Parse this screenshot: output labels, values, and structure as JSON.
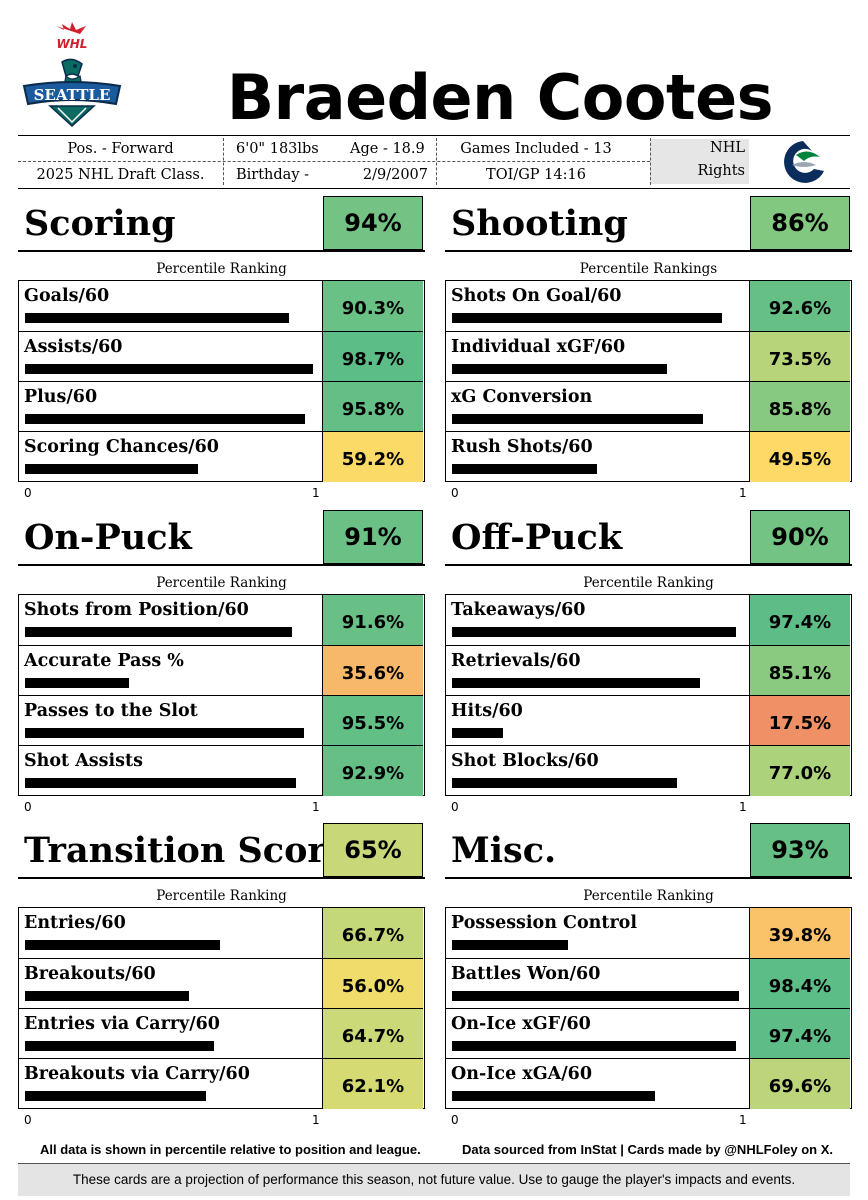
{
  "header": {
    "league_logo_text": "WHL",
    "team_logo_text": "SEATTLE",
    "player_name": "Braeden Cootes",
    "position": "Pos. - Forward",
    "draft_class": "2025 NHL Draft Class.",
    "height_weight": "6'0\" 183lbs",
    "age": "Age - 18.9",
    "birthday_label": "Birthday -",
    "birthday_value": "2/9/2007",
    "games_included": "Games Included - 13",
    "toi_gp": "TOI/GP 14:16",
    "rights_line1": "NHL",
    "rights_line2": "Rights",
    "rights_team_icon": "canucks-orca-logo"
  },
  "colors": {
    "green_dark": "#5cbd86",
    "green": "#74c385",
    "green_yellow": "#b7d47b",
    "yellow_green": "#c8d879",
    "yellow": "#fed967",
    "orange": "#f8b86a",
    "red_orange": "#ef9066"
  },
  "chart_data": [
    {
      "type": "bar",
      "title": "Scoring",
      "score": "94%",
      "score_color": "#74c385",
      "subtitle": "Percentile Ranking",
      "xlim": [
        0,
        1
      ],
      "tick_labels": [
        "0",
        "1"
      ],
      "categories": [
        "Goals/60",
        "Assists/60",
        "Plus/60",
        "Scoring Chances/60"
      ],
      "values": [
        0.903,
        0.987,
        0.958,
        0.592
      ],
      "value_labels": [
        "90.3%",
        "98.7%",
        "95.8%",
        "59.2%"
      ],
      "value_colors": [
        "#6ac185",
        "#5cbd86",
        "#64bf86",
        "#fcda67"
      ]
    },
    {
      "type": "bar",
      "title": "Shooting",
      "score": "86%",
      "score_color": "#83c880",
      "subtitle": "Percentile Rankings",
      "xlim": [
        0,
        1
      ],
      "tick_labels": [
        "0",
        "1"
      ],
      "categories": [
        "Shots On Goal/60",
        "Individual xGF/60",
        "xG Conversion",
        "Rush Shots/60"
      ],
      "values": [
        0.926,
        0.735,
        0.858,
        0.495
      ],
      "value_labels": [
        "92.6%",
        "73.5%",
        "85.8%",
        "49.5%"
      ],
      "value_colors": [
        "#66c086",
        "#b7d47b",
        "#87c981",
        "#fed967"
      ]
    },
    {
      "type": "bar",
      "title": "On-Puck",
      "score": "91%",
      "score_color": "#6bc185",
      "subtitle": "Percentile Ranking",
      "xlim": [
        0,
        1
      ],
      "tick_labels": [
        "0",
        "1"
      ],
      "categories": [
        "Shots from Position/60",
        "Accurate Pass %",
        "Passes to the Slot",
        "Shot Assists"
      ],
      "values": [
        0.916,
        0.356,
        0.955,
        0.929
      ],
      "value_labels": [
        "91.6%",
        "35.6%",
        "95.5%",
        "92.9%"
      ],
      "value_colors": [
        "#68c086",
        "#f8b86a",
        "#62bf86",
        "#66c086"
      ]
    },
    {
      "type": "bar",
      "title": "Off-Puck",
      "score": "90%",
      "score_color": "#72c384",
      "subtitle": "Percentile Ranking",
      "xlim": [
        0,
        1
      ],
      "tick_labels": [
        "0",
        "1"
      ],
      "categories": [
        "Takeaways/60",
        "Retrievals/60",
        "Hits/60",
        "Shot Blocks/60"
      ],
      "values": [
        0.974,
        0.851,
        0.175,
        0.77
      ],
      "value_labels": [
        "97.4%",
        "85.1%",
        "17.5%",
        "77.0%"
      ],
      "value_colors": [
        "#5ebd86",
        "#8aca80",
        "#ef9066",
        "#acd27c"
      ]
    },
    {
      "type": "bar",
      "title": "Transition Score",
      "score": "65%",
      "score_color": "#c8d879",
      "subtitle": "Percentile Ranking",
      "xlim": [
        0,
        1
      ],
      "tick_labels": [
        "0",
        "1"
      ],
      "categories": [
        "Entries/60",
        "Breakouts/60",
        "Entries via Carry/60",
        "Breakouts via Carry/60"
      ],
      "values": [
        0.667,
        0.56,
        0.647,
        0.621
      ],
      "value_labels": [
        "66.7%",
        "56.0%",
        "64.7%",
        "62.1%"
      ],
      "value_colors": [
        "#c5d879",
        "#f0dc6a",
        "#cbd978",
        "#d6da73"
      ]
    },
    {
      "type": "bar",
      "title": "Misc.",
      "score": "93%",
      "score_color": "#66c086",
      "subtitle": "Percentile Ranking",
      "xlim": [
        0,
        1
      ],
      "tick_labels": [
        "0",
        "1"
      ],
      "categories": [
        "Possession Control",
        "Battles Won/60",
        "On-Ice xGF/60",
        "On-Ice xGA/60"
      ],
      "values": [
        0.398,
        0.984,
        0.974,
        0.696
      ],
      "value_labels": [
        "39.8%",
        "98.4%",
        "97.4%",
        "69.6%"
      ],
      "value_colors": [
        "#fbc369",
        "#5cbd86",
        "#5ebd86",
        "#bdd57a"
      ]
    }
  ],
  "footer": {
    "left_note": "All data is shown in percentile relative to position and league.",
    "right_note": "Data sourced from InStat | Cards made by @NHLFoley on X.",
    "disclaimer": "These cards are a projection of performance this season, not future value. Use to gauge the player's impacts and events."
  }
}
